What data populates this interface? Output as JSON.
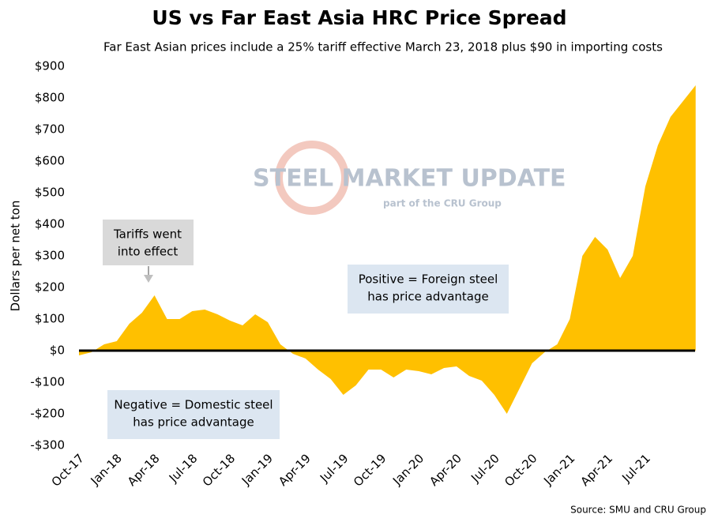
{
  "chart_data": {
    "type": "area",
    "title": "US vs Far East Asia HRC Price Spread",
    "subtitle": "Far East Asian prices include a 25% tariff effective March 23, 2018 plus $90 in importing costs",
    "y_label": "Dollars per net ton",
    "source": "Source: SMU and CRU Group",
    "watermark": [
      "STEEL MARKET UPDATE",
      "part of the CRU Group"
    ],
    "annotations": [
      {
        "lines": [
          "Tariffs went",
          "into effect"
        ]
      },
      {
        "lines": [
          "Positive = Foreign steel",
          "has price advantage"
        ]
      },
      {
        "lines": [
          "Negative = Domestic steel",
          "has price advantage"
        ]
      }
    ],
    "categories": [
      "Oct-17",
      null,
      null,
      "Jan-18",
      null,
      null,
      "Apr-18",
      null,
      null,
      "Jul-18",
      null,
      null,
      "Oct-18",
      null,
      null,
      "Jan-19",
      null,
      null,
      "Apr-19",
      null,
      null,
      "Jul-19",
      null,
      null,
      "Oct-19",
      null,
      null,
      "Jan-20",
      null,
      null,
      "Apr-20",
      null,
      null,
      "Jul-20",
      null,
      null,
      "Oct-20",
      null,
      null,
      "Jan-21",
      null,
      null,
      "Apr-21",
      null,
      null,
      "Jul-21",
      null,
      null,
      null,
      null
    ],
    "values": [
      -15,
      -5,
      20,
      30,
      85,
      120,
      175,
      100,
      100,
      125,
      130,
      115,
      95,
      80,
      115,
      90,
      20,
      -10,
      -25,
      -60,
      -90,
      -140,
      -110,
      -60,
      -60,
      -85,
      -60,
      -65,
      -75,
      -55,
      -50,
      -80,
      -95,
      -140,
      -200,
      -120,
      -40,
      -5,
      20,
      100,
      300,
      360,
      320,
      230,
      300,
      520,
      650,
      740,
      790,
      840
    ],
    "color": "#ffc000",
    "ylim": [
      -300,
      900
    ],
    "yticks": [
      {
        "value": -300,
        "label": "-$300"
      },
      {
        "value": -200,
        "label": "-$200"
      },
      {
        "value": -100,
        "label": "-$100"
      },
      {
        "value": 0,
        "label": "$0"
      },
      {
        "value": 100,
        "label": "$100"
      },
      {
        "value": 200,
        "label": "$200"
      },
      {
        "value": 300,
        "label": "$300"
      },
      {
        "value": 400,
        "label": "$400"
      },
      {
        "value": 500,
        "label": "$500"
      },
      {
        "value": 600,
        "label": "$600"
      },
      {
        "value": 700,
        "label": "$700"
      },
      {
        "value": 800,
        "label": "$800"
      },
      {
        "value": 900,
        "label": "$900"
      }
    ]
  }
}
